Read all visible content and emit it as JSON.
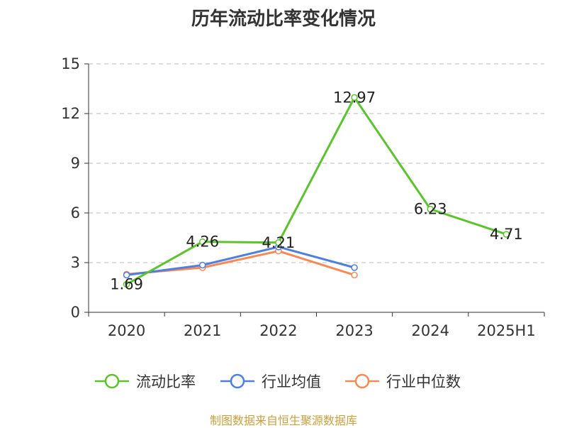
{
  "title": "历年流动比率变化情况",
  "source": "制图数据来自恒生聚源数据库",
  "chart_data": {
    "type": "line",
    "title": "历年流动比率变化情况",
    "categories": [
      "2020",
      "2021",
      "2022",
      "2023",
      "2024",
      "2025H1"
    ],
    "ylim": [
      0,
      15
    ],
    "yticks": [
      0,
      3,
      6,
      9,
      12,
      15
    ],
    "grid": true,
    "legend_position": "bottom",
    "series": [
      {
        "name": "流动比率",
        "color": "#5cc22d",
        "values": [
          1.69,
          4.26,
          4.21,
          12.97,
          6.23,
          4.71
        ],
        "labels": [
          "1.69",
          "4.26",
          "4.21",
          "12.97",
          "6.23",
          "4.71"
        ]
      },
      {
        "name": "行业均值",
        "color": "#4f7fdf",
        "values": [
          2.25,
          2.85,
          3.95,
          2.7,
          null,
          null
        ]
      },
      {
        "name": "行业中位数",
        "color": "#f58a56",
        "values": [
          2.3,
          2.7,
          3.7,
          2.25,
          null,
          null
        ]
      }
    ]
  }
}
